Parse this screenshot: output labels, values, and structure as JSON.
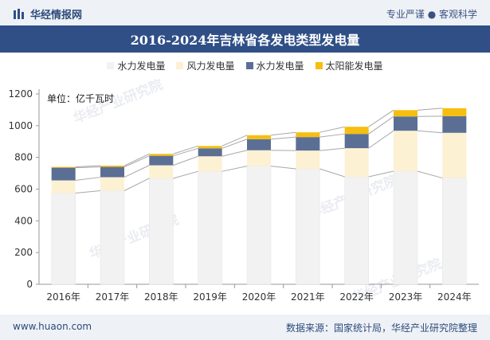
{
  "header": {
    "brand": "华经情报网",
    "tagline": "专业严谨 ● 客观科学"
  },
  "colors": {
    "bar_edge": "#b8b8b8",
    "line": "#a8a8a8"
  },
  "watermark_text": "华经产业研究院",
  "footer": {
    "website": "www.huaon.com",
    "source": "数据来源：国家统计局，华经产业研究院整理"
  },
  "chart_data": {
    "type": "bar",
    "stacked": true,
    "title": "2016-2024年吉林省各发电类型发电量",
    "unit_label": "单位：亿千瓦时",
    "categories": [
      "2016年",
      "2017年",
      "2018年",
      "2019年",
      "2020年",
      "2021年",
      "2022年",
      "2023年",
      "2024年"
    ],
    "ylim": [
      0,
      1200
    ],
    "yticks": [
      0,
      200,
      400,
      600,
      800,
      1000,
      1200
    ],
    "legend_position": "top-center",
    "series": [
      {
        "name": "水力发电量",
        "color": "#f2f2f2",
        "values": [
          575,
          590,
          668,
          712,
          745,
          728,
          678,
          713,
          670
        ]
      },
      {
        "name": "风力发电量",
        "color": "#fdf1d3",
        "values": [
          80,
          85,
          82,
          95,
          100,
          115,
          180,
          255,
          285
        ]
      },
      {
        "name": "水力发电量",
        "color": "#5b6f95",
        "values": [
          80,
          65,
          60,
          50,
          70,
          85,
          90,
          90,
          105
        ]
      },
      {
        "name": "太阳能发电量",
        "color": "#f6be10",
        "values": [
          5,
          8,
          12,
          15,
          25,
          30,
          45,
          40,
          50
        ]
      }
    ]
  }
}
